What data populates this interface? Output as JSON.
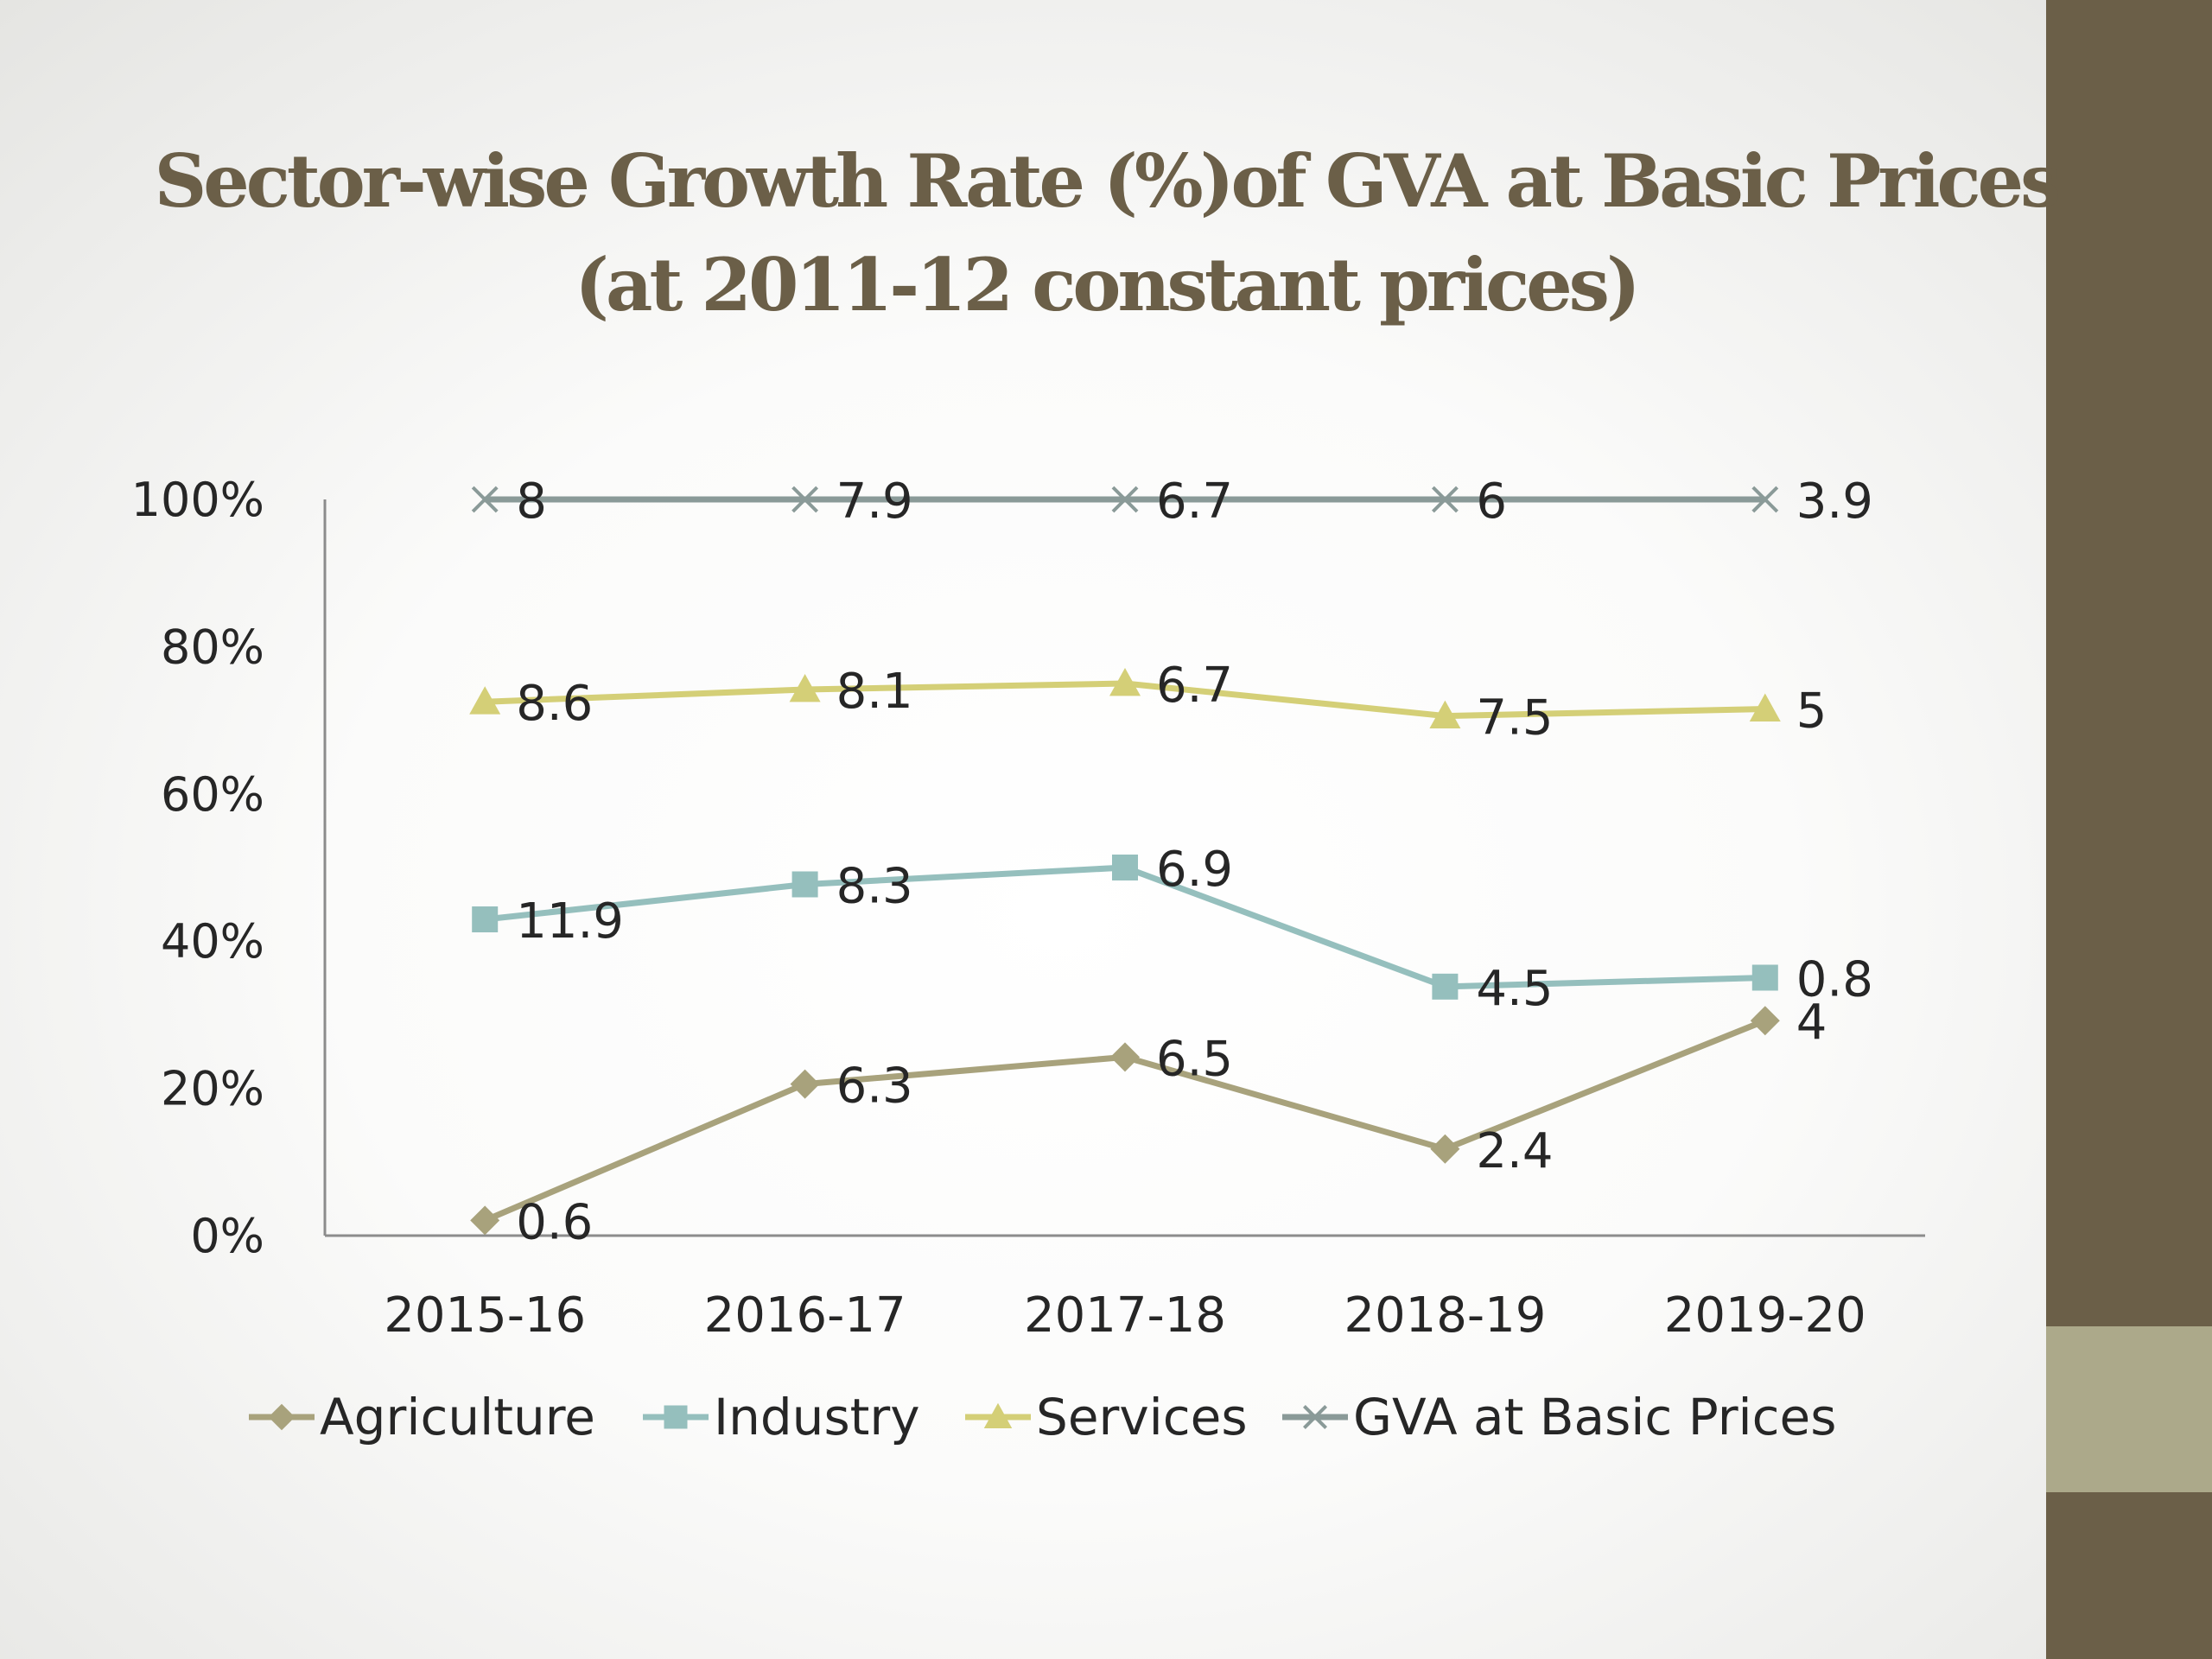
{
  "slide": {
    "title_line1": "Sector-wise Growth Rate (%)of GVA at Basic Prices",
    "title_line2": "(at 2011-12 constant prices)",
    "accent_color": "#6b5f48",
    "accent_light_color": "#aca98a"
  },
  "chart_data": {
    "type": "line",
    "stacking": "100% stacked",
    "categories": [
      "2015-16",
      "2016-17",
      "2017-18",
      "2018-19",
      "2019-20"
    ],
    "y_ticks": [
      "0%",
      "20%",
      "40%",
      "60%",
      "80%",
      "100%"
    ],
    "ylim": [
      0,
      100
    ],
    "grid": false,
    "legend_position": "bottom",
    "series": [
      {
        "name": "Agriculture",
        "marker": "diamond",
        "color": "#a8a27c",
        "values": [
          0.6,
          6.3,
          6.5,
          2.4,
          4
        ]
      },
      {
        "name": "Industry",
        "marker": "square",
        "color": "#95bfbd",
        "values": [
          11.9,
          8.3,
          6.9,
          4.5,
          0.8
        ]
      },
      {
        "name": "Services",
        "marker": "triangle",
        "color": "#d4cf77",
        "values": [
          8.6,
          8.1,
          6.7,
          7.5,
          5
        ]
      },
      {
        "name": "GVA at Basic Prices",
        "marker": "x",
        "color": "#8a9a98",
        "values": [
          8,
          7.9,
          6.7,
          6,
          3.9
        ]
      }
    ]
  }
}
